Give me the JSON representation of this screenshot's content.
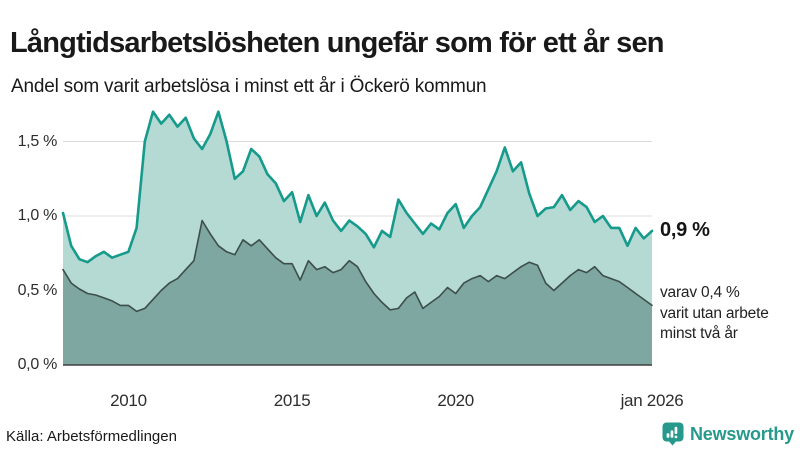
{
  "chart_data": {
    "type": "area",
    "title": "Långtidsarbetslösheten ungefär som för ett år sen",
    "subtitle": "Andel som varit arbetslösa i minst ett år i Öckerö kommun",
    "x_unit": "year (quarterly values, jan 2008 – jan 2026)",
    "x_range": [
      2008,
      2026
    ],
    "x_step": 0.25,
    "ylim": [
      0,
      1.75
    ],
    "grid": true,
    "legend_position": "end-of-line labels (right)",
    "y_ticks": [
      {
        "value": 0.0,
        "label": "0,0 %"
      },
      {
        "value": 0.5,
        "label": "0,5 %"
      },
      {
        "value": 1.0,
        "label": "1,0 %"
      },
      {
        "value": 1.5,
        "label": "1,5 %"
      }
    ],
    "x_ticks": [
      {
        "value": 2010,
        "label": "2010"
      },
      {
        "value": 2015,
        "label": "2015"
      },
      {
        "value": 2020,
        "label": "2020"
      },
      {
        "value": 2026,
        "label": "jan 2026"
      }
    ],
    "series": [
      {
        "name": "Andel arbetslösa minst ett år",
        "end_label": "0,9 %",
        "line_color": "#169a8c",
        "fill_color": "#b4dad3",
        "line_width": 2.6,
        "values": [
          1.02,
          0.8,
          0.71,
          0.69,
          0.73,
          0.76,
          0.72,
          0.74,
          0.76,
          0.92,
          1.5,
          1.7,
          1.62,
          1.68,
          1.6,
          1.66,
          1.52,
          1.45,
          1.55,
          1.7,
          1.5,
          1.25,
          1.3,
          1.45,
          1.4,
          1.28,
          1.22,
          1.1,
          1.16,
          0.96,
          1.14,
          1.0,
          1.09,
          0.97,
          0.9,
          0.97,
          0.93,
          0.88,
          0.79,
          0.9,
          0.86,
          1.11,
          1.02,
          0.95,
          0.88,
          0.95,
          0.91,
          1.02,
          1.08,
          0.92,
          1.0,
          1.06,
          1.18,
          1.3,
          1.46,
          1.3,
          1.36,
          1.15,
          1.0,
          1.05,
          1.06,
          1.14,
          1.04,
          1.1,
          1.06,
          0.96,
          1.0,
          0.92,
          0.92,
          0.8,
          0.92,
          0.85,
          0.9
        ]
      },
      {
        "name": "Varav utan arbete minst två år",
        "end_label": "varav 0,4 %",
        "line_color": "#3d4e4b",
        "fill_color": "#7da7a0",
        "line_width": 1.6,
        "values": [
          0.64,
          0.55,
          0.51,
          0.48,
          0.47,
          0.45,
          0.43,
          0.4,
          0.4,
          0.36,
          0.38,
          0.44,
          0.5,
          0.55,
          0.58,
          0.64,
          0.7,
          0.97,
          0.88,
          0.8,
          0.76,
          0.74,
          0.84,
          0.8,
          0.84,
          0.78,
          0.72,
          0.68,
          0.68,
          0.57,
          0.7,
          0.64,
          0.66,
          0.62,
          0.64,
          0.7,
          0.66,
          0.56,
          0.48,
          0.42,
          0.37,
          0.38,
          0.45,
          0.49,
          0.38,
          0.42,
          0.46,
          0.52,
          0.48,
          0.55,
          0.58,
          0.6,
          0.56,
          0.6,
          0.58,
          0.62,
          0.66,
          0.69,
          0.67,
          0.55,
          0.5,
          0.55,
          0.6,
          0.64,
          0.62,
          0.66,
          0.6,
          0.58,
          0.56,
          0.52,
          0.48,
          0.44,
          0.4
        ]
      }
    ],
    "annotations": {
      "latest_value": "0,9 %",
      "secondary_note": "varav 0,4 %\nvarit utan arbete\nminst två år"
    },
    "colors": {
      "grid": "#dcdcdc",
      "baseline": "#3e3e3e"
    }
  },
  "source_label": "Källa: Arbetsförmedlingen",
  "branding": {
    "wordmark": "Newsworthy",
    "color": "#27998c"
  }
}
